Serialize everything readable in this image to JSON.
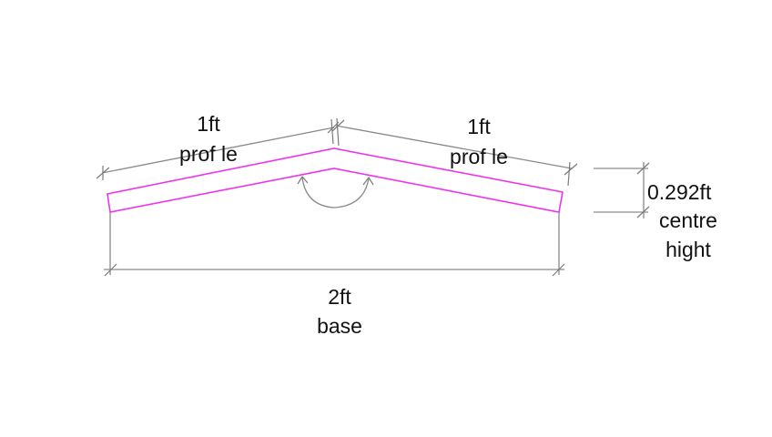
{
  "diagram": {
    "colors": {
      "profile": "#ee33ee",
      "dimension_line": "#8a8a8a",
      "text": "#111111",
      "background": "#ffffff"
    },
    "labels": {
      "left_length": "1ft",
      "left_name": "prof le",
      "right_length": "1ft",
      "right_name": "prof le",
      "height_value": "0.292ft",
      "height_name_line1": "centre",
      "height_name_line2": "hight",
      "base_value": "2ft",
      "base_name": "base"
    }
  }
}
